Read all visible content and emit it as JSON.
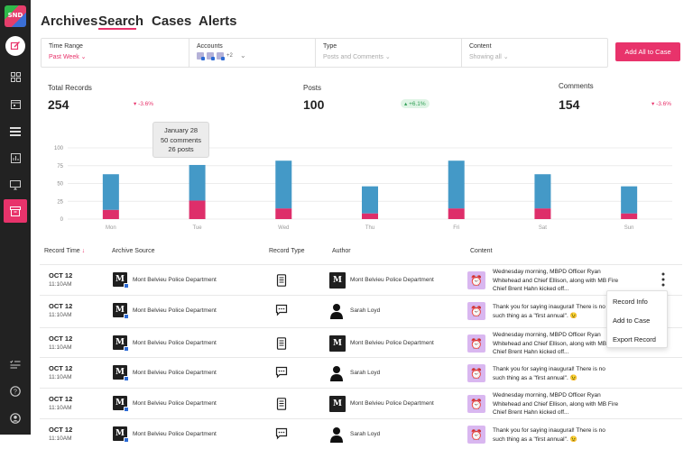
{
  "app": {
    "logo_text": "SND"
  },
  "sidebar": {
    "icons": [
      "compose-icon",
      "dashboard-icon",
      "calendar-icon",
      "list-icon",
      "analytics-icon",
      "monitor-icon",
      "archive-icon",
      "tasks-icon",
      "help-icon",
      "profile-icon"
    ]
  },
  "nav": {
    "tabs": [
      "Archives",
      "Search",
      "Cases",
      "Alerts"
    ],
    "active": "Search"
  },
  "filters": {
    "time_range": {
      "label": "Time Range",
      "value": "Past Week"
    },
    "accounts": {
      "label": "Accounts",
      "extra": "+2"
    },
    "type": {
      "label": "Type",
      "value": "Posts and Comments"
    },
    "content": {
      "label": "Content",
      "value": "Showing all"
    }
  },
  "add_all_button": "Add All to Case",
  "stats": [
    {
      "label": "Total Records",
      "value": "254",
      "change": "-3.6%",
      "direction": "down"
    },
    {
      "label": "Posts",
      "value": "100",
      "change": "+6.1%",
      "direction": "up"
    },
    {
      "label": "Comments",
      "value": "154",
      "change": "-3.6%",
      "direction": "down"
    }
  ],
  "tooltip": {
    "date": "January 28",
    "comments": "50 comments",
    "posts": "26 posts"
  },
  "chart_data": {
    "type": "bar",
    "stacked": true,
    "categories": [
      "Mon",
      "Tue",
      "Wed",
      "Thu",
      "Fri",
      "Sat",
      "Sun"
    ],
    "y_ticks": [
      "100",
      "75",
      "50",
      "25",
      "0"
    ],
    "ylim": [
      0,
      100
    ],
    "grid": true,
    "series": [
      {
        "values": [
          13,
          26,
          15,
          8,
          15,
          15,
          8
        ],
        "color": "#de2e6a"
      },
      {
        "values": [
          50,
          50,
          67,
          38,
          67,
          48,
          38
        ],
        "color": "#4499c7"
      }
    ]
  },
  "table": {
    "headers": [
      "Record Time",
      "Archive Source",
      "Record Type",
      "Author",
      "Content"
    ],
    "rows": [
      {
        "date": "OCT 12",
        "time": "11:10AM",
        "source": "Mont Belvieu Police Department",
        "type": "post",
        "author": "Mont Belvieu Police Department",
        "author_kind": "org",
        "content": "Wednesday morning, MBPD Officer Ryan Whitehead and Chief Ellison, along with MB Fire Chief Brent Hahn kicked off..."
      },
      {
        "date": "OCT 12",
        "time": "11:10AM",
        "source": "Mont Belvieu Police Department",
        "type": "comment",
        "author": "Sarah Loyd",
        "author_kind": "person",
        "content": "Thank you for saying inaugural! There is no such thing as a \"first annual\". 😉"
      },
      {
        "date": "OCT 12",
        "time": "11:10AM",
        "source": "Mont Belvieu Police Department",
        "type": "post",
        "author": "Mont Belvieu Police Department",
        "author_kind": "org",
        "content": "Wednesday morning, MBPD Officer Ryan Whitehead and Chief Ellison, along with MB Fire Chief Brent Hahn kicked off..."
      },
      {
        "date": "OCT 12",
        "time": "11:10AM",
        "source": "Mont Belvieu Police Department",
        "type": "comment",
        "author": "Sarah Loyd",
        "author_kind": "person",
        "content": "Thank you for saying inaugural! There is no such thing as a \"first annual\". 😉"
      },
      {
        "date": "OCT 12",
        "time": "11:10AM",
        "source": "Mont Belvieu Police Department",
        "type": "post",
        "author": "Mont Belvieu Police Department",
        "author_kind": "org",
        "content": "Wednesday morning, MBPD Officer Ryan Whitehead and Chief Ellison, along with MB Fire Chief Brent Hahn kicked off..."
      },
      {
        "date": "OCT 12",
        "time": "11:10AM",
        "source": "Mont Belvieu Police Department",
        "type": "comment",
        "author": "Sarah Loyd",
        "author_kind": "person",
        "content": "Thank you for saying inaugural! There is no such thing as a \"first annual\". 😉"
      }
    ]
  },
  "row_menu": {
    "items": [
      "Record Info",
      "Add to Case",
      "Export Record"
    ]
  },
  "colors": {
    "accent": "#e8336b",
    "bar_comments": "#4499c7",
    "bar_posts": "#de2e6a",
    "sidebar": "#222222"
  }
}
